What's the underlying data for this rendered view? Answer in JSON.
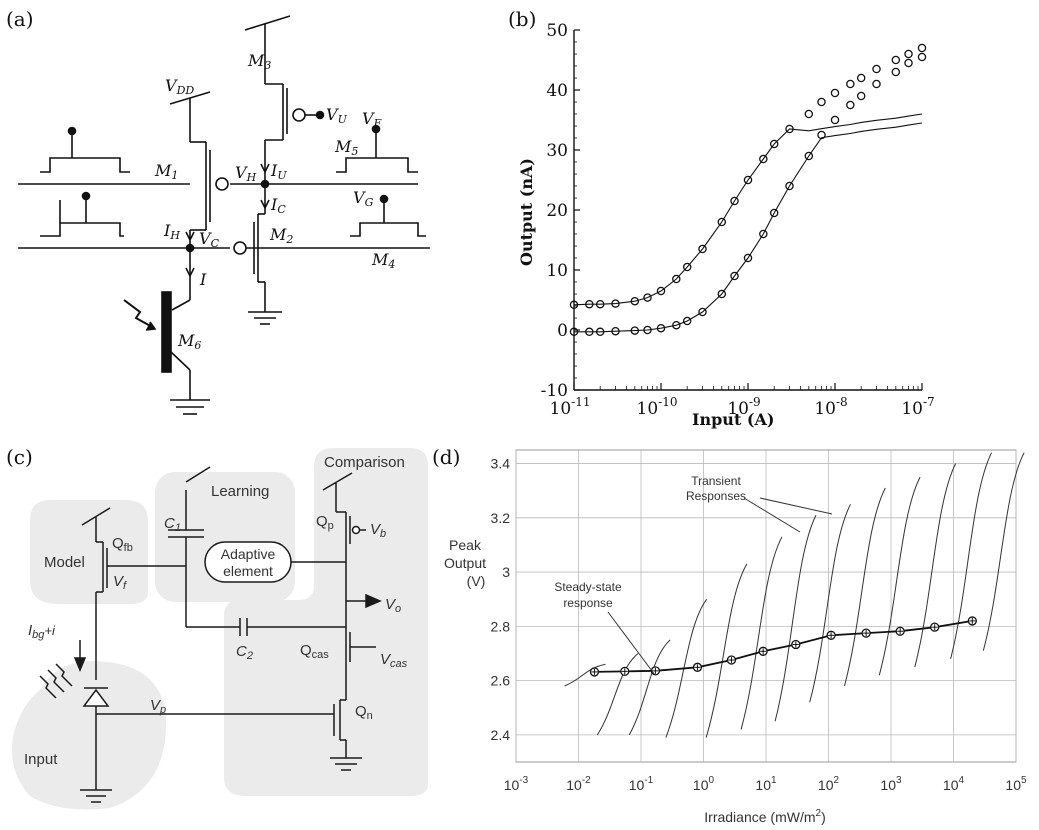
{
  "panels": {
    "a": {
      "tag": "(a)",
      "labels": {
        "vdd_v": "V",
        "vdd_sub": "DD",
        "m1": "M",
        "m1_sub": "1",
        "m2": "M",
        "m2_sub": "2",
        "m3": "M",
        "m3_sub": "3",
        "m4": "M",
        "m4_sub": "4",
        "m5": "M",
        "m5_sub": "5",
        "m6": "M",
        "m6_sub": "6",
        "vu": "V",
        "vu_sub": "U",
        "vf": "V",
        "vf_sub": "F",
        "vg": "V",
        "vg_sub": "G",
        "vh": "V",
        "vh_sub": "H",
        "iu": "I",
        "iu_sub": "U",
        "ic": "I",
        "ic_sub": "C",
        "ih": "I",
        "ih_sub": "H",
        "vc": "V",
        "vc_sub": "C",
        "i": "I"
      }
    },
    "b": {
      "tag": "(b)",
      "xlabel": "Input (A)",
      "ylabel": "Output (nA)",
      "y_ticks": [
        "50",
        "40",
        "30",
        "20",
        "10",
        "0",
        "-10"
      ],
      "x_tick_base": "10",
      "x_tick_exps": [
        "-11",
        "-10",
        "-9",
        "-8",
        "-7"
      ]
    },
    "c": {
      "tag": "(c)",
      "regions": {
        "model": "Model",
        "learning": "Learning",
        "comparison": "Comparison",
        "input": "Input"
      },
      "adaptive_element": [
        "Adaptive",
        "element"
      ],
      "labels": {
        "qfb": "Q",
        "qfb_sub": "fb",
        "qp": "Q",
        "qp_sub": "p",
        "qcas": "Q",
        "qcas_sub": "cas",
        "qn": "Q",
        "qn_sub": "n",
        "c1": "C",
        "c1_sub": "1",
        "c2": "C",
        "c2_sub": "2",
        "vb": "V",
        "vb_sub": "b",
        "vf": "V",
        "vf_sub": "f",
        "vo": "V",
        "vo_sub": "o",
        "vcas": "V",
        "vcas_sub": "cas",
        "vp": "V",
        "vp_sub": "p",
        "ibg": "I",
        "ibg_sub": "bg",
        "ibg_tail": "+i"
      }
    },
    "d": {
      "tag": "(d)",
      "ylabel": [
        "Peak",
        "Output",
        "(V)"
      ],
      "y_ticks": [
        "3.4",
        "3.2",
        "3",
        "2.8",
        "2.6",
        "2.4"
      ],
      "x_tick_base": "10",
      "x_tick_exps": [
        "-3",
        "-2",
        "-1",
        "0",
        "1",
        "2",
        "3",
        "4",
        "5"
      ],
      "xlabel": "Irradiance (mW/m",
      "xlabel_sup": "2",
      "xlabel_tail": ")",
      "annotations": {
        "transient": [
          "Transient",
          "Responses"
        ],
        "steady": [
          "Steady-state",
          "response"
        ]
      }
    }
  },
  "chart_data": [
    {
      "type": "scatter",
      "panel": "b",
      "xlabel": "Input (A)",
      "ylabel": "Output (nA)",
      "x_scale": "log",
      "xlim": [
        1e-11,
        1e-07
      ],
      "ylim": [
        -10,
        50
      ],
      "grid": false,
      "series": [
        {
          "x": [
            1e-11,
            1.5e-11,
            2e-11,
            3e-11,
            5e-11,
            7e-11,
            1e-10,
            1.5e-10,
            2e-10,
            3e-10,
            5e-10,
            7e-10,
            1e-09,
            1.5e-09,
            2e-09,
            3e-09,
            5e-09,
            7e-09,
            1e-08,
            1.5e-08,
            2e-08,
            3e-08,
            5e-08,
            7e-08,
            1e-07
          ],
          "y": [
            4.2,
            4.3,
            4.3,
            4.4,
            4.8,
            5.4,
            6.5,
            8.5,
            10.5,
            13.5,
            18,
            21.5,
            25,
            28.5,
            31,
            33.5,
            36,
            38,
            39.5,
            41,
            42,
            43.5,
            45,
            46,
            47
          ]
        },
        {
          "x": [
            1e-11,
            1.5e-11,
            2e-11,
            3e-11,
            5e-11,
            7e-11,
            1e-10,
            1.5e-10,
            2e-10,
            3e-10,
            5e-10,
            7e-10,
            1e-09,
            1.5e-09,
            2e-09,
            3e-09,
            5e-09,
            7e-09,
            1e-08,
            1.5e-08,
            2e-08,
            3e-08,
            5e-08,
            7e-08,
            1e-07
          ],
          "y": [
            -0.3,
            -0.3,
            -0.3,
            -0.2,
            -0.1,
            0,
            0.3,
            0.8,
            1.5,
            3,
            6,
            9,
            12,
            16,
            19.5,
            24,
            29,
            32.5,
            35,
            37.5,
            39,
            41,
            43,
            44.5,
            45.5
          ]
        }
      ]
    },
    {
      "type": "line",
      "panel": "d",
      "xlabel": "Irradiance (mW/m2)",
      "ylabel": "Peak Output (V)",
      "x_scale": "log",
      "xlim": [
        0.001,
        100000
      ],
      "ylim": [
        2.3,
        3.45
      ],
      "grid": true,
      "series": [
        {
          "x": [
            0.018,
            0.055,
            0.17,
            0.8,
            2.8,
            9,
            30,
            110,
            400,
            1400,
            5000,
            20000
          ],
          "y": [
            2.632,
            2.634,
            2.636,
            2.649,
            2.676,
            2.708,
            2.733,
            2.767,
            2.775,
            2.782,
            2.797,
            2.82
          ]
        }
      ]
    }
  ]
}
